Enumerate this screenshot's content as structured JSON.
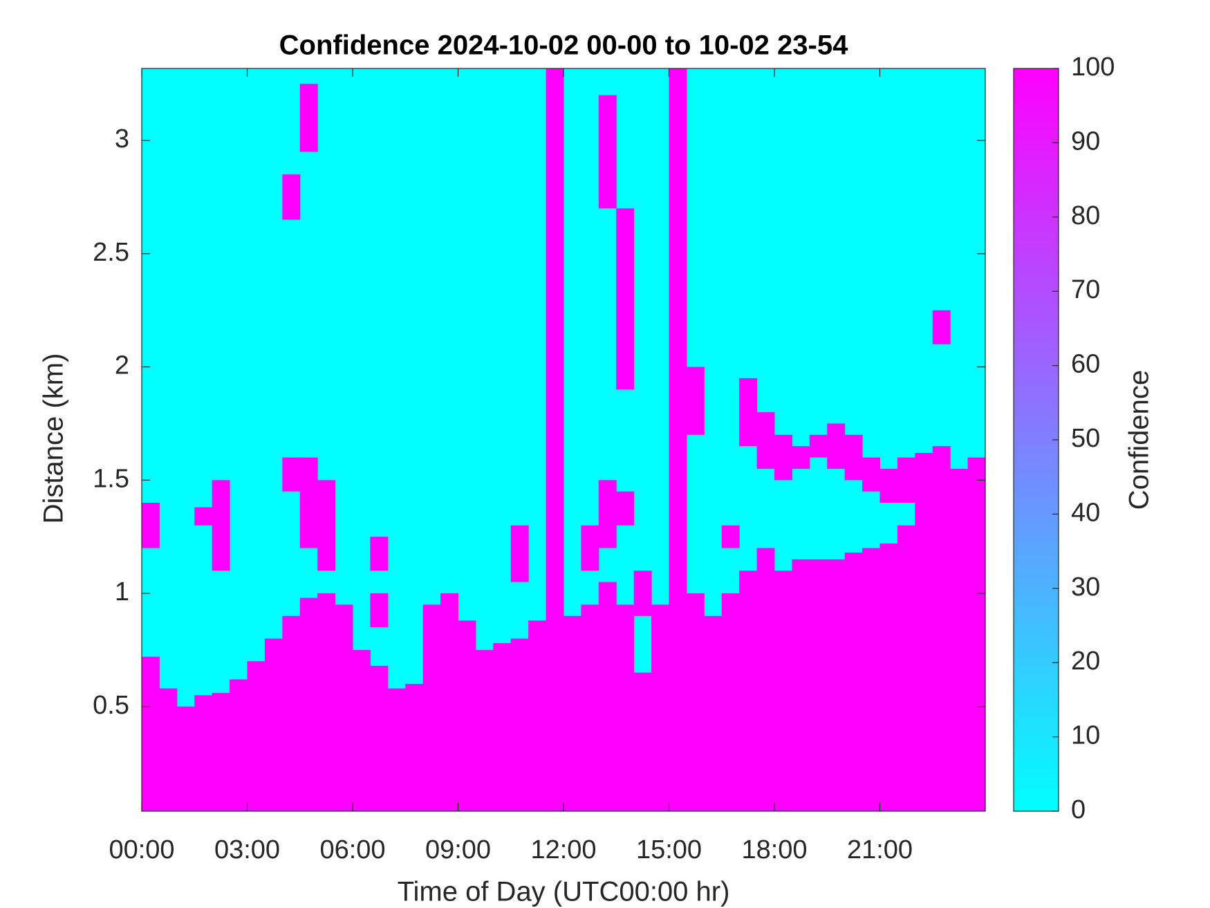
{
  "chart_data": {
    "type": "heatmap",
    "title": "Confidence 2024-10-02 00-00 to 10-02 23-54",
    "x_label": "Time of Day (UTC00:00 hr)",
    "y_label": "Distance (km)",
    "colorbar_label": "Confidence",
    "xlim": [
      0,
      24
    ],
    "xticks": [
      {
        "value": 0,
        "label": "00:00"
      },
      {
        "value": 3,
        "label": "03:00"
      },
      {
        "value": 6,
        "label": "06:00"
      },
      {
        "value": 9,
        "label": "09:00"
      },
      {
        "value": 12,
        "label": "12:00"
      },
      {
        "value": 15,
        "label": "15:00"
      },
      {
        "value": 18,
        "label": "18:00"
      },
      {
        "value": 21,
        "label": "21:00"
      }
    ],
    "ylim": [
      0.038,
      3.318
    ],
    "yticks": [
      0.5,
      1,
      1.5,
      2,
      2.5,
      3
    ],
    "clim": [
      0,
      100
    ],
    "cticks": [
      0,
      10,
      20,
      30,
      40,
      50,
      60,
      70,
      80,
      90,
      100
    ],
    "colormap": [
      "#00ffff",
      "#ff00ff"
    ],
    "background_value": 0,
    "span_value": 100,
    "xbins": [
      0,
      0.5,
      1,
      1.5,
      2,
      2.5,
      3,
      3.5,
      4,
      4.5,
      5,
      5.5,
      6,
      6.5,
      7,
      7.5,
      8,
      8.5,
      9,
      9.5,
      10,
      10.5,
      11,
      11.5,
      12,
      12.5,
      13,
      13.5,
      14,
      14.5,
      15,
      15.5,
      16,
      16.5,
      17,
      17.5,
      18,
      18.5,
      19,
      19.5,
      20,
      20.5,
      21,
      21.5,
      22,
      22.5,
      23,
      23.5,
      24
    ],
    "columns": [
      {
        "spans": [
          [
            0.04,
            0.72
          ],
          [
            1.2,
            1.4
          ]
        ]
      },
      {
        "spans": [
          [
            0.04,
            0.58
          ]
        ]
      },
      {
        "spans": [
          [
            0.04,
            0.5
          ]
        ]
      },
      {
        "spans": [
          [
            0.04,
            0.55
          ],
          [
            1.3,
            1.38
          ]
        ]
      },
      {
        "spans": [
          [
            0.04,
            0.56
          ],
          [
            1.1,
            1.5
          ]
        ]
      },
      {
        "spans": [
          [
            0.04,
            0.62
          ]
        ]
      },
      {
        "spans": [
          [
            0.04,
            0.7
          ]
        ]
      },
      {
        "spans": [
          [
            0.04,
            0.8
          ]
        ]
      },
      {
        "spans": [
          [
            0.04,
            0.9
          ],
          [
            1.45,
            1.6
          ],
          [
            2.65,
            2.85
          ]
        ]
      },
      {
        "spans": [
          [
            0.04,
            0.98
          ],
          [
            1.2,
            1.6
          ],
          [
            2.95,
            3.25
          ]
        ]
      },
      {
        "spans": [
          [
            0.04,
            1.0
          ],
          [
            1.1,
            1.5
          ]
        ]
      },
      {
        "spans": [
          [
            0.04,
            0.95
          ]
        ]
      },
      {
        "spans": [
          [
            0.04,
            0.75
          ]
        ]
      },
      {
        "spans": [
          [
            0.04,
            0.68
          ],
          [
            0.85,
            1.0
          ],
          [
            1.1,
            1.25
          ]
        ]
      },
      {
        "spans": [
          [
            0.04,
            0.58
          ]
        ]
      },
      {
        "spans": [
          [
            0.04,
            0.6
          ]
        ]
      },
      {
        "spans": [
          [
            0.04,
            0.95
          ]
        ]
      },
      {
        "spans": [
          [
            0.04,
            1.0
          ]
        ]
      },
      {
        "spans": [
          [
            0.04,
            0.88
          ]
        ]
      },
      {
        "spans": [
          [
            0.04,
            0.75
          ]
        ]
      },
      {
        "spans": [
          [
            0.04,
            0.78
          ]
        ]
      },
      {
        "spans": [
          [
            0.04,
            0.8
          ],
          [
            1.05,
            1.3
          ]
        ]
      },
      {
        "spans": [
          [
            0.04,
            0.88
          ]
        ]
      },
      {
        "spans": [
          [
            0.04,
            3.318
          ]
        ]
      },
      {
        "spans": [
          [
            0.04,
            0.9
          ]
        ]
      },
      {
        "spans": [
          [
            0.04,
            0.95
          ],
          [
            1.1,
            1.3
          ]
        ]
      },
      {
        "spans": [
          [
            0.04,
            1.05
          ],
          [
            1.2,
            1.5
          ],
          [
            2.7,
            3.2
          ]
        ]
      },
      {
        "spans": [
          [
            0.04,
            0.95
          ],
          [
            1.3,
            1.45
          ],
          [
            1.9,
            2.7
          ]
        ]
      },
      {
        "spans": [
          [
            0.04,
            0.65
          ],
          [
            0.9,
            1.1
          ]
        ]
      },
      {
        "spans": [
          [
            0.04,
            0.95
          ]
        ]
      },
      {
        "spans": [
          [
            0.04,
            3.318
          ]
        ]
      },
      {
        "spans": [
          [
            0.04,
            1.0
          ],
          [
            1.7,
            2.0
          ]
        ]
      },
      {
        "spans": [
          [
            0.04,
            0.9
          ]
        ]
      },
      {
        "spans": [
          [
            0.04,
            1.0
          ],
          [
            1.2,
            1.3
          ]
        ]
      },
      {
        "spans": [
          [
            0.04,
            1.1
          ],
          [
            1.65,
            1.95
          ]
        ]
      },
      {
        "spans": [
          [
            0.04,
            1.2
          ],
          [
            1.55,
            1.8
          ]
        ]
      },
      {
        "spans": [
          [
            0.04,
            1.1
          ],
          [
            1.5,
            1.7
          ]
        ]
      },
      {
        "spans": [
          [
            0.04,
            1.15
          ],
          [
            1.55,
            1.65
          ]
        ]
      },
      {
        "spans": [
          [
            0.04,
            1.15
          ],
          [
            1.6,
            1.7
          ]
        ]
      },
      {
        "spans": [
          [
            0.04,
            1.15
          ],
          [
            1.55,
            1.75
          ]
        ]
      },
      {
        "spans": [
          [
            0.04,
            1.18
          ],
          [
            1.5,
            1.7
          ]
        ]
      },
      {
        "spans": [
          [
            0.04,
            1.2
          ],
          [
            1.45,
            1.6
          ]
        ]
      },
      {
        "spans": [
          [
            0.04,
            1.22
          ],
          [
            1.4,
            1.55
          ]
        ]
      },
      {
        "spans": [
          [
            0.04,
            1.3
          ],
          [
            1.4,
            1.6
          ]
        ]
      },
      {
        "spans": [
          [
            0.04,
            1.62
          ]
        ]
      },
      {
        "spans": [
          [
            0.04,
            1.65
          ],
          [
            2.1,
            2.25
          ]
        ]
      },
      {
        "spans": [
          [
            0.04,
            1.55
          ]
        ]
      },
      {
        "spans": [
          [
            0.04,
            1.6
          ]
        ]
      }
    ]
  }
}
